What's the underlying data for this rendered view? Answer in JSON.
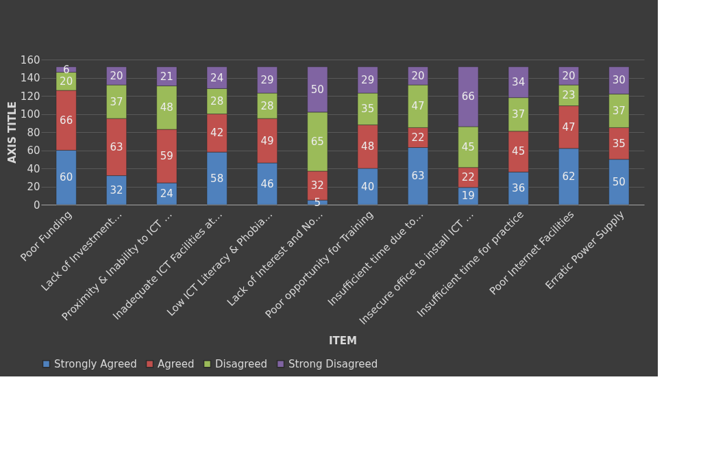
{
  "chart_data": {
    "type": "bar",
    "stacked": true,
    "xlabel": "ITEM",
    "ylabel": "AXIS TITLE",
    "categories": [
      "Poor Funding",
      "Lack of Investment…",
      "Proximity  & Inability to ICT …",
      "Inadequate ICT Facilities at…",
      "Low ICT Literacy & Phobia…",
      "Lack of Interest and No…",
      "Poor opportunity for Training",
      "Insufficient time due to…",
      "Insecure office to install ICT …",
      "Insufficient time for practice",
      "Poor Internet Facilities",
      "Erratic Power Supply"
    ],
    "series": [
      {
        "name": "Strongly Agreed",
        "color": "#4f81bd",
        "values": [
          60,
          32,
          24,
          58,
          46,
          5,
          40,
          63,
          19,
          36,
          62,
          50
        ]
      },
      {
        "name": "Agreed",
        "color": "#c0504d",
        "values": [
          66,
          63,
          59,
          42,
          49,
          32,
          48,
          22,
          22,
          45,
          47,
          35
        ]
      },
      {
        "name": "Disagreed",
        "color": "#9bbb59",
        "values": [
          20,
          37,
          48,
          28,
          28,
          65,
          35,
          47,
          45,
          37,
          23,
          37
        ]
      },
      {
        "name": "Strong Disagreed",
        "color": "#8064a2",
        "values": [
          6,
          20,
          21,
          24,
          29,
          50,
          29,
          20,
          66,
          34,
          20,
          30
        ]
      }
    ],
    "ylim": [
      0,
      160
    ],
    "yticks": [
      0,
      20,
      40,
      60,
      80,
      100,
      120,
      140,
      160
    ],
    "data_labels": true,
    "grid": "y",
    "legend": "bottom"
  }
}
